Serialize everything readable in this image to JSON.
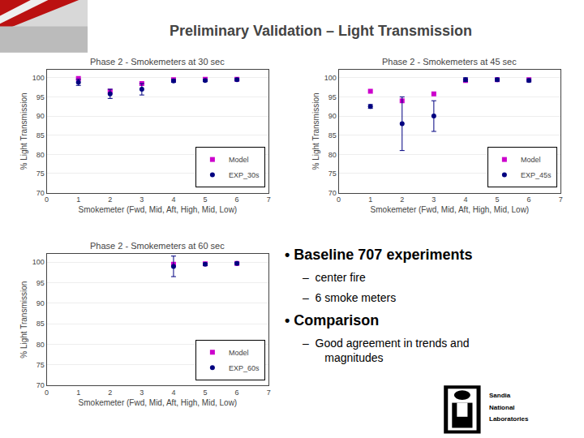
{
  "title": "Preliminary Validation – Light Transmission",
  "annotations": [
    "• Baseline 707 experiments",
    "–  center fire",
    "–  6 smoke meters",
    "• Comparison",
    "–  Good agreement in trends and\n       magnitudes",
    "Sandia",
    "National",
    "Laboratories"
  ],
  "chart_data": [
    {
      "type": "scatter",
      "title": "Phase 2 - Smokemeters at 30 sec",
      "xlabel": "Smokemeter (Fwd, Mid, Aft, High, Mid, Low)",
      "ylabel": "% Light Transmission",
      "xlim": [
        0,
        7
      ],
      "ylim": [
        70,
        102
      ],
      "xticks": [
        0,
        1,
        2,
        3,
        4,
        5,
        6,
        7
      ],
      "yticks": [
        70,
        75,
        80,
        85,
        90,
        95,
        100
      ],
      "grid": "y",
      "legend": "lower right",
      "series": [
        {
          "name": "Model",
          "color": "#CC00CC",
          "marker": "square",
          "x": [
            1,
            2,
            3,
            4,
            5,
            6
          ],
          "values": [
            99.8,
            96.5,
            98.5,
            99.5,
            99.6,
            99.6
          ]
        },
        {
          "name": "EXP_30s",
          "color": "#000080",
          "marker": "circle",
          "x": [
            1,
            2,
            3,
            4,
            5,
            6
          ],
          "values": [
            98.8,
            95.8,
            97.0,
            99.2,
            99.3,
            99.5
          ],
          "yerr": [
            0.8,
            1.2,
            1.5,
            0.4,
            0.3,
            0.3
          ]
        }
      ]
    },
    {
      "type": "scatter",
      "title": "Phase 2 - Smokemeters at 45 sec",
      "xlabel": "Smokemeter (Fwd, Mid, Aft, High, Mid, Low)",
      "ylabel": "% Light Transmission",
      "xlim": [
        0,
        7
      ],
      "ylim": [
        70,
        102
      ],
      "xticks": [
        0,
        1,
        2,
        3,
        4,
        5,
        6,
        7
      ],
      "yticks": [
        70,
        75,
        80,
        85,
        90,
        95,
        100
      ],
      "grid": "y",
      "legend": "lower right",
      "series": [
        {
          "name": "Model",
          "color": "#CC00CC",
          "marker": "square",
          "x": [
            1,
            2,
            3,
            4,
            5,
            6
          ],
          "values": [
            96.5,
            94.0,
            95.8,
            99.3,
            99.5,
            99.5
          ]
        },
        {
          "name": "EXP_45s",
          "color": "#000080",
          "marker": "circle",
          "x": [
            1,
            2,
            3,
            4,
            5,
            6
          ],
          "values": [
            92.5,
            88.0,
            90.0,
            99.5,
            99.5,
            99.3
          ],
          "yerr": [
            0.5,
            7.0,
            4.0,
            0.5,
            0.4,
            0.4
          ]
        }
      ]
    },
    {
      "type": "scatter",
      "title": "Phase 2 - Smokemeters at 60 sec",
      "xlabel": "Smokemeter (Fwd, Mid, Aft, High, Mid, Low)",
      "ylabel": "% Light Transmission",
      "xlim": [
        0,
        7
      ],
      "ylim": [
        70,
        102
      ],
      "xticks": [
        0,
        1,
        2,
        3,
        4,
        5,
        6,
        7
      ],
      "yticks": [
        70,
        75,
        80,
        85,
        90,
        95,
        100
      ],
      "grid": "y",
      "legend": "lower right",
      "series": [
        {
          "name": "Model",
          "color": "#CC00CC",
          "marker": "square",
          "x": [
            4,
            5,
            6
          ],
          "values": [
            99.5,
            99.6,
            99.7
          ]
        },
        {
          "name": "EXP_60s",
          "color": "#000080",
          "marker": "circle",
          "x": [
            4,
            5,
            6
          ],
          "values": [
            99.0,
            99.5,
            99.7
          ],
          "yerr": [
            2.5,
            0.3,
            0.2
          ]
        }
      ]
    }
  ]
}
